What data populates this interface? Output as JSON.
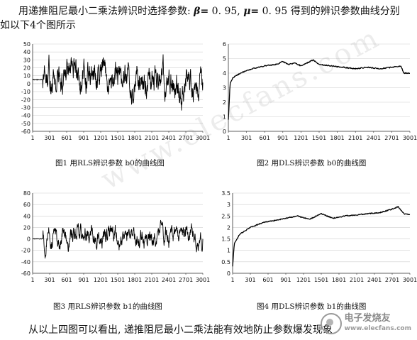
{
  "text": {
    "intro_line1_a": "用递推阻尼最小二乘法辨识时选择参数: ",
    "intro_beta": "β=",
    "intro_beta_val": "0. 95,",
    "intro_mu": "μ=",
    "intro_mu_val": "0. 95",
    "intro_line1_b": " 得到的辨识参数曲线分别",
    "intro_line2": "如以下4个图所示",
    "conclusion": "从以上四图可以看出, 递推阻尼最小二乘法能有效地防止参数爆发现象"
  },
  "watermark": "www.elecfans.com",
  "logo": {
    "name": "电子发烧友",
    "url": "www.elecfans.com"
  },
  "figures": [
    {
      "id": "fig1",
      "caption": "图1   用RLS辨识参数 b0的曲线图"
    },
    {
      "id": "fig2",
      "caption": "图2   用DLS辨识参数 b0的曲线图"
    },
    {
      "id": "fig3",
      "caption": "图3   用RLS辨识参数 b1的曲线图"
    },
    {
      "id": "fig4",
      "caption": "图4   用DLS辨识参数 b1的曲线图"
    }
  ],
  "chart_data": [
    {
      "type": "line",
      "ylim": [
        -60,
        50
      ],
      "yticks": [
        -60,
        -50,
        -40,
        -30,
        -20,
        -10,
        0,
        10,
        20,
        30,
        40,
        50
      ],
      "xlim": [
        1,
        3001
      ],
      "xticks": [
        "1",
        "301",
        "601",
        "901",
        "1201",
        "1501",
        "1801",
        "2101",
        "2401",
        "2701",
        "3001"
      ],
      "series": [
        {
          "pattern": "noisy",
          "baseline": 5,
          "amplitude": 28,
          "start_flat_until": 180,
          "start_value": 5
        }
      ],
      "grid": "horizontal"
    },
    {
      "type": "line",
      "ylim": [
        0,
        6
      ],
      "yticks": [
        0,
        1,
        2,
        3,
        4,
        5,
        6
      ],
      "xlim": [
        1,
        3001
      ],
      "xticks": [
        "1",
        "301",
        "601",
        "901",
        "1201",
        "1501",
        "1801",
        "2101",
        "2401",
        "2701",
        "3001"
      ],
      "series": [
        {
          "pattern": "smooth",
          "points": [
            [
              1,
              0.8
            ],
            [
              30,
              3.3
            ],
            [
              80,
              3.7
            ],
            [
              200,
              4.0
            ],
            [
              400,
              4.3
            ],
            [
              600,
              4.5
            ],
            [
              800,
              4.6
            ],
            [
              900,
              4.8
            ],
            [
              1000,
              4.6
            ],
            [
              1100,
              4.7
            ],
            [
              1200,
              4.5
            ],
            [
              1300,
              4.7
            ],
            [
              1400,
              4.9
            ],
            [
              1500,
              4.6
            ],
            [
              1700,
              4.5
            ],
            [
              1900,
              4.4
            ],
            [
              2100,
              4.3
            ],
            [
              2300,
              4.4
            ],
            [
              2500,
              4.3
            ],
            [
              2700,
              4.4
            ],
            [
              2850,
              4.5
            ],
            [
              2900,
              4.0
            ],
            [
              3001,
              4.0
            ]
          ]
        }
      ],
      "grid": "horizontal"
    },
    {
      "type": "line",
      "ylim": [
        -60,
        80
      ],
      "yticks": [
        -60,
        -40,
        -20,
        0,
        20,
        40,
        60,
        80
      ],
      "xlim": [
        1,
        3001
      ],
      "xticks": [
        "1",
        "301",
        "601",
        "901",
        "1201",
        "1501",
        "1801",
        "2101",
        "2401",
        "2701",
        "3001"
      ],
      "series": [
        {
          "pattern": "noisy",
          "baseline": 5,
          "amplitude": 25,
          "start_flat_until": 180,
          "start_value": 0
        }
      ],
      "grid": "horizontal"
    },
    {
      "type": "line",
      "ylim": [
        0,
        3.5
      ],
      "yticks": [
        0,
        0.5,
        1,
        1.5,
        2,
        2.5,
        3,
        3.5
      ],
      "xlim": [
        1,
        3001
      ],
      "xticks": [
        "1",
        "301",
        "601",
        "901",
        "1201",
        "1501",
        "1801",
        "2101",
        "2401",
        "2701",
        "3001"
      ],
      "series": [
        {
          "pattern": "smooth",
          "points": [
            [
              1,
              0.3
            ],
            [
              30,
              1.3
            ],
            [
              120,
              1.7
            ],
            [
              300,
              2.0
            ],
            [
              500,
              2.2
            ],
            [
              700,
              2.3
            ],
            [
              900,
              2.4
            ],
            [
              1100,
              2.5
            ],
            [
              1300,
              2.35
            ],
            [
              1500,
              2.6
            ],
            [
              1700,
              2.4
            ],
            [
              1900,
              2.5
            ],
            [
              2100,
              2.55
            ],
            [
              2300,
              2.6
            ],
            [
              2500,
              2.65
            ],
            [
              2700,
              2.8
            ],
            [
              2800,
              2.9
            ],
            [
              2900,
              2.6
            ],
            [
              3001,
              2.55
            ]
          ]
        }
      ],
      "grid": "horizontal"
    }
  ]
}
